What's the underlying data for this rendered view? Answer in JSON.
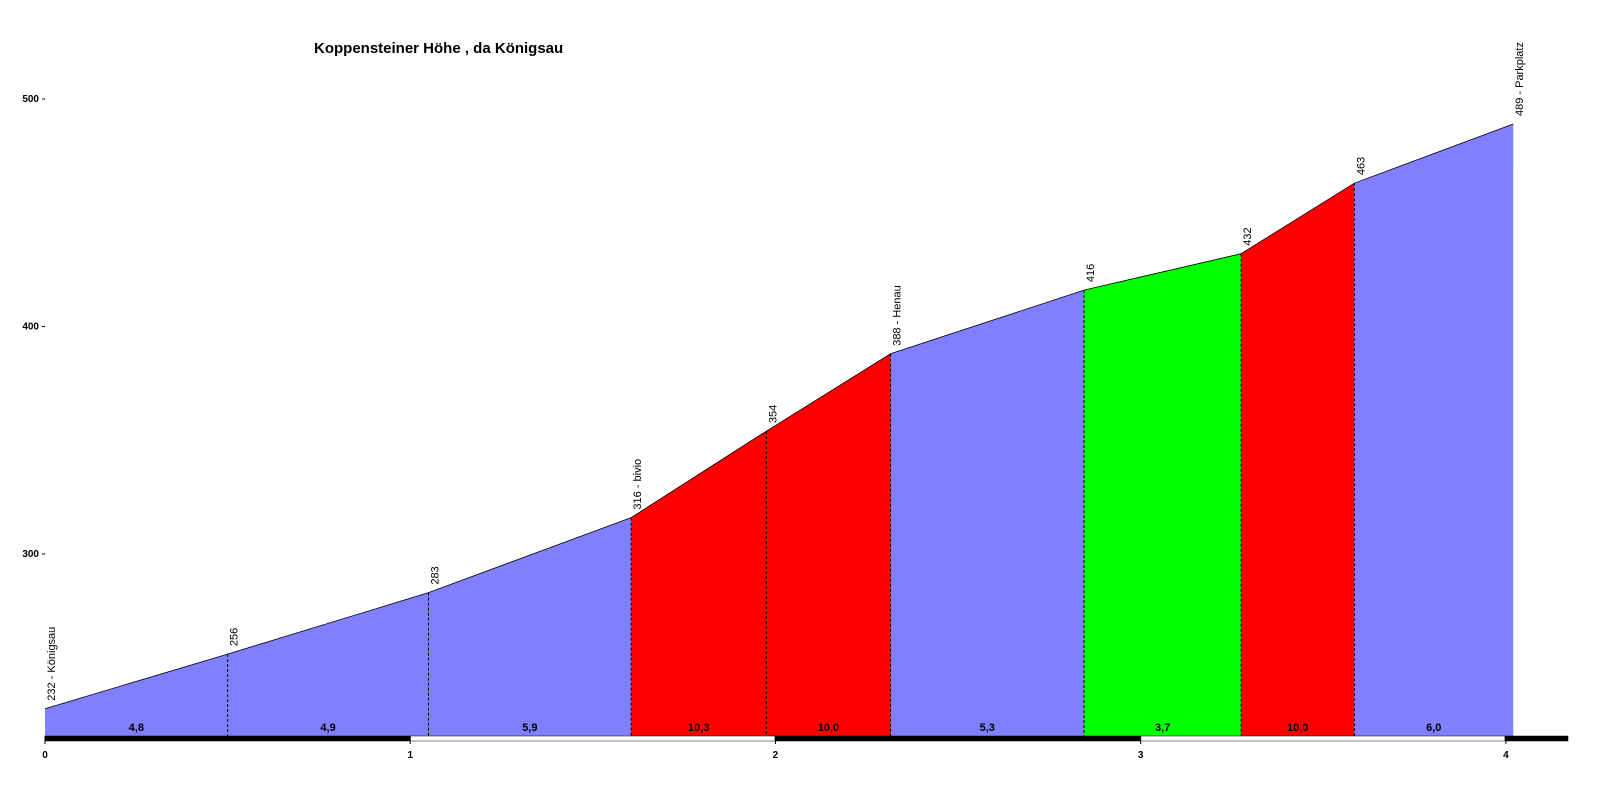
{
  "chart_data": {
    "type": "area",
    "title": "Koppensteiner Höhe , da Königsau",
    "x": [
      0,
      0.5,
      1.05,
      1.605,
      1.975,
      2.315,
      2.845,
      3.275,
      3.585,
      4.02
    ],
    "series": [
      {
        "values": [
          232,
          256,
          283,
          316,
          354,
          388,
          416,
          432,
          463,
          489
        ],
        "value_labels": [
          "232 - Königsau",
          "256",
          "283",
          "316 - bivio",
          "354",
          "388 - Henau",
          "416",
          "432",
          "463",
          "489 - Parkplatz"
        ]
      }
    ],
    "segment_gradients": [
      4.8,
      4.9,
      5.9,
      10.3,
      10.0,
      5.3,
      3.7,
      10.0,
      6.0
    ],
    "segment_gradient_labels": [
      "4,8",
      "4,9",
      "5,9",
      "10,3",
      "10,0",
      "5,3",
      "3,7",
      "10,0",
      "6,0"
    ],
    "segment_colors": [
      "#8080ff",
      "#8080ff",
      "#8080ff",
      "#ff0000",
      "#ff0000",
      "#8080ff",
      "#00ff00",
      "#ff0000",
      "#8080ff"
    ],
    "xlim": [
      0,
      4.17
    ],
    "ylim": [
      220,
      500
    ],
    "xticks": [
      0,
      1,
      2,
      3,
      4
    ],
    "yticks": [
      300,
      400,
      500
    ]
  }
}
